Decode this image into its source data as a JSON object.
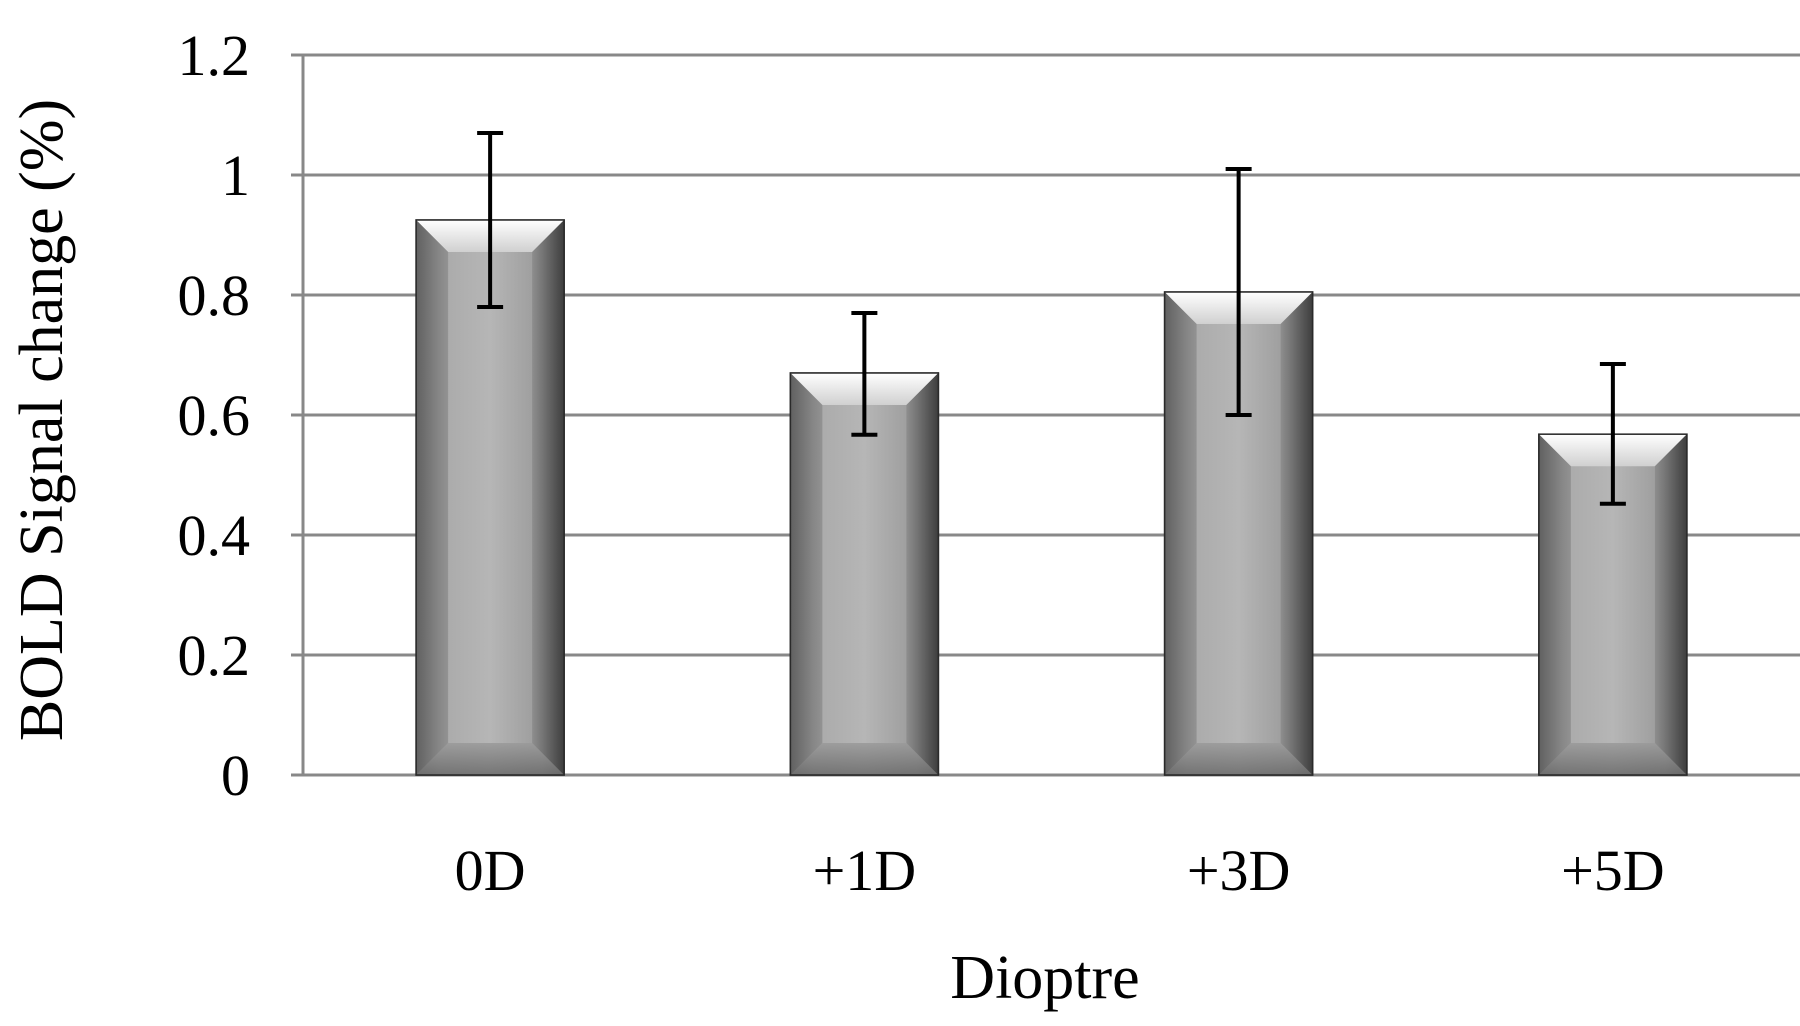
{
  "chart_data": {
    "type": "bar",
    "categories": [
      "0D",
      "+1D",
      "+3D",
      "+5D"
    ],
    "values": [
      0.925,
      0.67,
      0.805,
      0.568
    ],
    "error_low": [
      0.78,
      0.567,
      0.6,
      0.452
    ],
    "error_high": [
      1.07,
      0.77,
      1.01,
      0.685
    ],
    "xlabel": "Dioptre",
    "ylabel": "BOLD Signal change (%)",
    "ylim": [
      0,
      1.2
    ],
    "yticks": [
      0,
      0.2,
      0.4,
      0.6,
      0.8,
      1,
      1.2
    ],
    "ytick_labels": [
      "0",
      "0.2",
      "0.4",
      "0.6",
      "0.8",
      "1",
      "1.2"
    ],
    "grid": true,
    "legend": "none",
    "bar_color": "#b0b0b0"
  }
}
